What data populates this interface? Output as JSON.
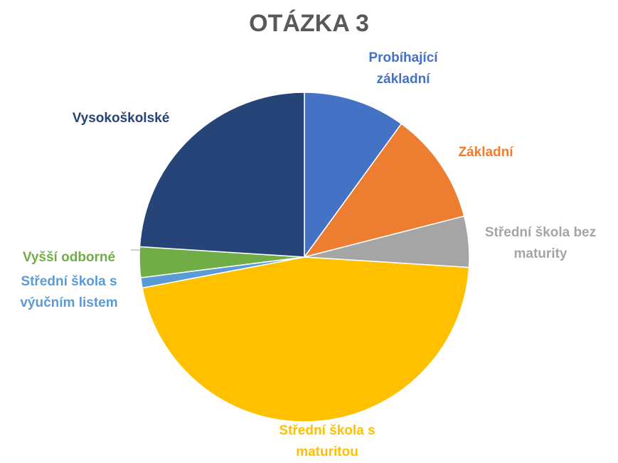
{
  "chart_data": {
    "type": "pie",
    "title": "OTÁZKA 3",
    "categories": [
      "Probíhající základní",
      "Základní",
      "Střední škola bez maturity",
      "Střední škola s maturitou",
      "Střední škola s výučním listem",
      "Vyšší odborné",
      "Vysokoškolské"
    ],
    "values": [
      10,
      11,
      5,
      46,
      1,
      3,
      24
    ],
    "colors": [
      "#4472c4",
      "#ed7d31",
      "#a5a5a5",
      "#ffc000",
      "#5b9bd5",
      "#70ad47",
      "#264478"
    ]
  }
}
